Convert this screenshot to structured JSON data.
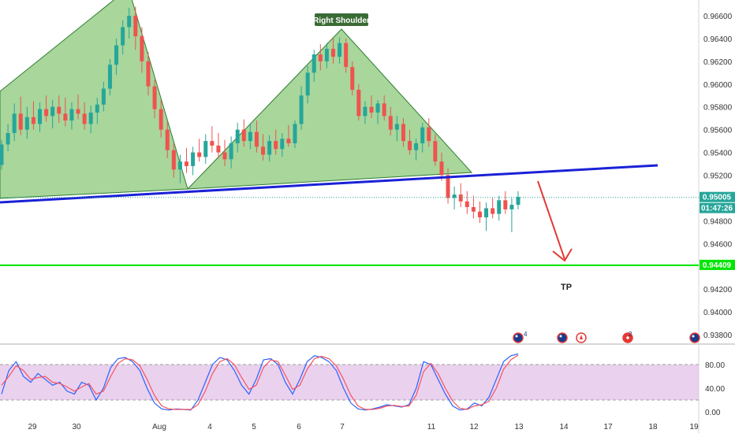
{
  "chart_data": [
    {
      "type": "candlestick",
      "instrument_price_axis": {
        "ticks": [
          "0.96600",
          "0.96400",
          "0.96200",
          "0.96000",
          "0.95800",
          "0.95600",
          "0.95400",
          "0.95200",
          "0.94800",
          "0.94600",
          "0.94200",
          "0.94000",
          "0.93800"
        ],
        "ylim": [
          0.9372,
          0.9673
        ]
      },
      "x_ticks": [
        "29",
        "30",
        "Aug",
        "4",
        "5",
        "6",
        "7",
        "11",
        "12",
        "13",
        "14",
        "17",
        "18",
        "19"
      ],
      "current_price": "0.95005",
      "countdown": "01:47:26",
      "tp_level_label": "0.94409",
      "tp_level": 0.94409,
      "annotations": {
        "right_shoulder": "Right Shoulder",
        "tp": "TP"
      },
      "candles": [
        [
          0.9529,
          0.9551,
          0.9525,
          0.9547
        ],
        [
          0.9547,
          0.9565,
          0.9541,
          0.9557
        ],
        [
          0.9557,
          0.9583,
          0.955,
          0.9574
        ],
        [
          0.9574,
          0.9589,
          0.9555,
          0.956
        ],
        [
          0.956,
          0.958,
          0.9552,
          0.9571
        ],
        [
          0.9571,
          0.9585,
          0.956,
          0.9565
        ],
        [
          0.9565,
          0.9584,
          0.9558,
          0.9578
        ],
        [
          0.9578,
          0.959,
          0.9567,
          0.9572
        ],
        [
          0.9572,
          0.9586,
          0.9561,
          0.958
        ],
        [
          0.958,
          0.959,
          0.9566,
          0.9574
        ],
        [
          0.9574,
          0.9588,
          0.9563,
          0.9568
        ],
        [
          0.9568,
          0.9584,
          0.956,
          0.9578
        ],
        [
          0.9578,
          0.9591,
          0.9569,
          0.9574
        ],
        [
          0.9574,
          0.9584,
          0.956,
          0.9565
        ],
        [
          0.9565,
          0.9581,
          0.9557,
          0.9575
        ],
        [
          0.9575,
          0.9588,
          0.9565,
          0.9582
        ],
        [
          0.9582,
          0.9602,
          0.9576,
          0.9596
        ],
        [
          0.9596,
          0.9622,
          0.959,
          0.9617
        ],
        [
          0.9617,
          0.964,
          0.9608,
          0.9634
        ],
        [
          0.9634,
          0.9656,
          0.9626,
          0.965
        ],
        [
          0.965,
          0.9667,
          0.964,
          0.966
        ],
        [
          0.966,
          0.9668,
          0.963,
          0.9642
        ],
        [
          0.9642,
          0.965,
          0.961,
          0.962
        ],
        [
          0.962,
          0.9628,
          0.959,
          0.9598
        ],
        [
          0.9598,
          0.9604,
          0.957,
          0.9578
        ],
        [
          0.9578,
          0.9586,
          0.9553,
          0.956
        ],
        [
          0.956,
          0.9567,
          0.9535,
          0.9542
        ],
        [
          0.9542,
          0.9548,
          0.9518,
          0.9525
        ],
        [
          0.9525,
          0.9538,
          0.9513,
          0.9532
        ],
        [
          0.9532,
          0.9544,
          0.9522,
          0.9528
        ],
        [
          0.9528,
          0.9545,
          0.952,
          0.954
        ],
        [
          0.954,
          0.9552,
          0.9532,
          0.9536
        ],
        [
          0.9536,
          0.9556,
          0.953,
          0.955
        ],
        [
          0.955,
          0.9563,
          0.954,
          0.9546
        ],
        [
          0.9546,
          0.9557,
          0.9535,
          0.954
        ],
        [
          0.954,
          0.9551,
          0.9528,
          0.9534
        ],
        [
          0.9534,
          0.9554,
          0.9526,
          0.9548
        ],
        [
          0.9548,
          0.9566,
          0.954,
          0.956
        ],
        [
          0.956,
          0.9569,
          0.9545,
          0.955
        ],
        [
          0.955,
          0.9565,
          0.9543,
          0.9558
        ],
        [
          0.9558,
          0.9568,
          0.954,
          0.9545
        ],
        [
          0.9545,
          0.9556,
          0.9533,
          0.9538
        ],
        [
          0.9538,
          0.9555,
          0.9532,
          0.955
        ],
        [
          0.955,
          0.956,
          0.9538,
          0.9543
        ],
        [
          0.9543,
          0.9557,
          0.9536,
          0.9552
        ],
        [
          0.9552,
          0.9564,
          0.9545,
          0.9548
        ],
        [
          0.9548,
          0.9568,
          0.9544,
          0.9565
        ],
        [
          0.9565,
          0.9598,
          0.956,
          0.959
        ],
        [
          0.959,
          0.9616,
          0.9583,
          0.961
        ],
        [
          0.961,
          0.963,
          0.9602,
          0.9626
        ],
        [
          0.9626,
          0.9635,
          0.9612,
          0.962
        ],
        [
          0.962,
          0.9636,
          0.9614,
          0.9631
        ],
        [
          0.9631,
          0.964,
          0.9618,
          0.9624
        ],
        [
          0.9624,
          0.9641,
          0.9618,
          0.9636
        ],
        [
          0.9636,
          0.964,
          0.961,
          0.9615
        ],
        [
          0.9615,
          0.962,
          0.959,
          0.9595
        ],
        [
          0.9595,
          0.96,
          0.9568,
          0.9572
        ],
        [
          0.9572,
          0.9585,
          0.9565,
          0.958
        ],
        [
          0.958,
          0.959,
          0.957,
          0.9575
        ],
        [
          0.9575,
          0.9586,
          0.9565,
          0.9583
        ],
        [
          0.9583,
          0.959,
          0.9568,
          0.9572
        ],
        [
          0.9572,
          0.958,
          0.9555,
          0.956
        ],
        [
          0.956,
          0.9572,
          0.955,
          0.9565
        ],
        [
          0.9565,
          0.957,
          0.9545,
          0.955
        ],
        [
          0.955,
          0.956,
          0.9538,
          0.9542
        ],
        [
          0.9542,
          0.9552,
          0.9533,
          0.9548
        ],
        [
          0.9548,
          0.9566,
          0.954,
          0.9562
        ],
        [
          0.9562,
          0.957,
          0.9545,
          0.955
        ],
        [
          0.955,
          0.9556,
          0.9528,
          0.9532
        ],
        [
          0.9532,
          0.954,
          0.9515,
          0.952
        ],
        [
          0.952,
          0.9526,
          0.9495,
          0.95
        ],
        [
          0.95,
          0.951,
          0.949,
          0.9503
        ],
        [
          0.9503,
          0.9513,
          0.9492,
          0.9497
        ],
        [
          0.9497,
          0.9506,
          0.9486,
          0.9492
        ],
        [
          0.9492,
          0.9502,
          0.9482,
          0.9488
        ],
        [
          0.9488,
          0.9497,
          0.9478,
          0.9483
        ],
        [
          0.9483,
          0.9496,
          0.9471,
          0.9491
        ],
        [
          0.9491,
          0.95,
          0.9482,
          0.9486
        ],
        [
          0.9486,
          0.9502,
          0.948,
          0.9498
        ],
        [
          0.9498,
          0.9506,
          0.9486,
          0.949
        ],
        [
          0.949,
          0.95,
          0.947,
          0.9494
        ],
        [
          0.9494,
          0.9506,
          0.949,
          0.9501
        ]
      ]
    },
    {
      "type": "line",
      "indicator": "stochastic",
      "y_ticks": [
        "80.00",
        "40.00",
        "0.00"
      ],
      "ylim": [
        -8,
        112
      ],
      "band": [
        20,
        80
      ],
      "series": [
        {
          "color": "#2962ff",
          "values": [
            30,
            70,
            85,
            60,
            50,
            65,
            55,
            45,
            50,
            35,
            30,
            50,
            45,
            20,
            40,
            75,
            90,
            92,
            85,
            70,
            40,
            15,
            5,
            3,
            5,
            4,
            3,
            20,
            50,
            80,
            92,
            88,
            70,
            45,
            30,
            55,
            88,
            90,
            80,
            50,
            30,
            55,
            85,
            95,
            92,
            85,
            70,
            40,
            15,
            5,
            3,
            5,
            8,
            12,
            10,
            8,
            12,
            40,
            85,
            80,
            55,
            30,
            10,
            3,
            5,
            15,
            10,
            25,
            55,
            85,
            95,
            98
          ]
        },
        {
          "color": "#f7525f",
          "values": [
            45,
            60,
            78,
            70,
            55,
            58,
            60,
            50,
            48,
            42,
            35,
            42,
            48,
            30,
            35,
            60,
            82,
            90,
            88,
            78,
            55,
            28,
            10,
            5,
            4,
            4,
            4,
            12,
            35,
            65,
            85,
            90,
            80,
            58,
            38,
            45,
            75,
            88,
            85,
            62,
            38,
            45,
            72,
            90,
            94,
            90,
            78,
            55,
            28,
            10,
            4,
            4,
            6,
            10,
            11,
            9,
            10,
            28,
            68,
            82,
            65,
            40,
            18,
            6,
            4,
            10,
            12,
            18,
            40,
            72,
            88,
            96
          ]
        }
      ]
    }
  ],
  "icons": [
    "flag-au-icon",
    "flag-au-icon",
    "flag-ca-icon",
    "flag-swiss-icon",
    "flag-au-icon"
  ],
  "event_badges": [
    "4",
    "2"
  ],
  "colors": {
    "bull": "#26a69a",
    "bear": "#ef5350",
    "pattern_fill": "#8bc87a",
    "pattern_stroke": "#2e7d32",
    "neckline": "#1a21d6",
    "tp_line": "#00e600",
    "arrow": "#e53935",
    "band": "#e1bee7",
    "label_bg": "#3a6b35"
  }
}
